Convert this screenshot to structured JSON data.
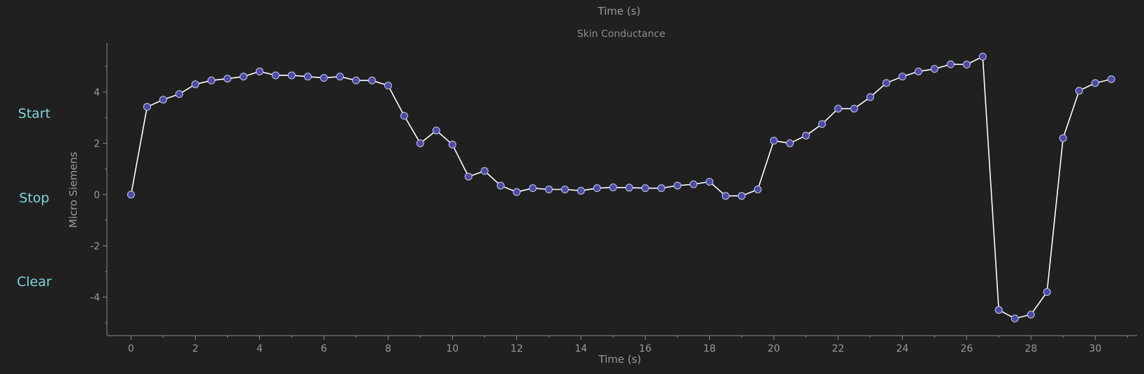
{
  "controls": {
    "start_label": "Start",
    "stop_label": "Stop",
    "clear_label": "Clear"
  },
  "colors": {
    "background": "#202020",
    "axis": "#8a8a8a",
    "text": "#9a9a9a",
    "button_text": "#7fd6d9",
    "line": "#ffffff",
    "marker_fill": "#4a4aa8",
    "marker_edge": "#c8c8e8"
  },
  "chart_data": {
    "type": "line",
    "title": "Skin Conductance",
    "top_label": "Time (s)",
    "xlabel": "Time (s)",
    "ylabel": "Micro Siemens",
    "xlim": [
      -0.75,
      31.3
    ],
    "ylim": [
      -5.5,
      5.9
    ],
    "xticks": [
      0,
      2,
      4,
      6,
      8,
      10,
      12,
      14,
      16,
      18,
      20,
      22,
      24,
      26,
      28,
      30
    ],
    "yticks": [
      -4,
      -2,
      0,
      2,
      4
    ],
    "grid": false,
    "series": [
      {
        "x": [
          0,
          0.5,
          1,
          1.5,
          2,
          2.5,
          3,
          3.5,
          4,
          4.5,
          5,
          5.5,
          6,
          6.5,
          7,
          7.5,
          8,
          8.5,
          9,
          9.5,
          10,
          10.5,
          11,
          11.5,
          12,
          12.5,
          13,
          13.5,
          14,
          14.5,
          15,
          15.5,
          16,
          16.5,
          17,
          17.5,
          18,
          18.5,
          19,
          19.5,
          20,
          20.5,
          21,
          21.5,
          22,
          22.5,
          23,
          23.5,
          24,
          24.5,
          25,
          25.5,
          26,
          26.5,
          27,
          27.5,
          28,
          28.5,
          29,
          29.5,
          30,
          30.5
        ],
        "values": [
          0.0,
          3.42,
          3.7,
          3.92,
          4.3,
          4.45,
          4.52,
          4.6,
          4.8,
          4.65,
          4.65,
          4.6,
          4.55,
          4.6,
          4.45,
          4.45,
          4.25,
          3.07,
          2.0,
          2.5,
          1.95,
          0.7,
          0.92,
          0.35,
          0.1,
          0.25,
          0.2,
          0.2,
          0.15,
          0.25,
          0.28,
          0.27,
          0.25,
          0.25,
          0.35,
          0.4,
          0.5,
          -0.05,
          -0.05,
          0.2,
          2.1,
          2.0,
          2.3,
          2.75,
          3.35,
          3.35,
          3.8,
          4.35,
          4.6,
          4.8,
          4.9,
          5.08,
          5.07,
          5.38,
          -4.5,
          -4.83,
          -4.68,
          -3.8,
          2.2,
          4.05,
          4.35,
          4.5
        ]
      }
    ]
  }
}
